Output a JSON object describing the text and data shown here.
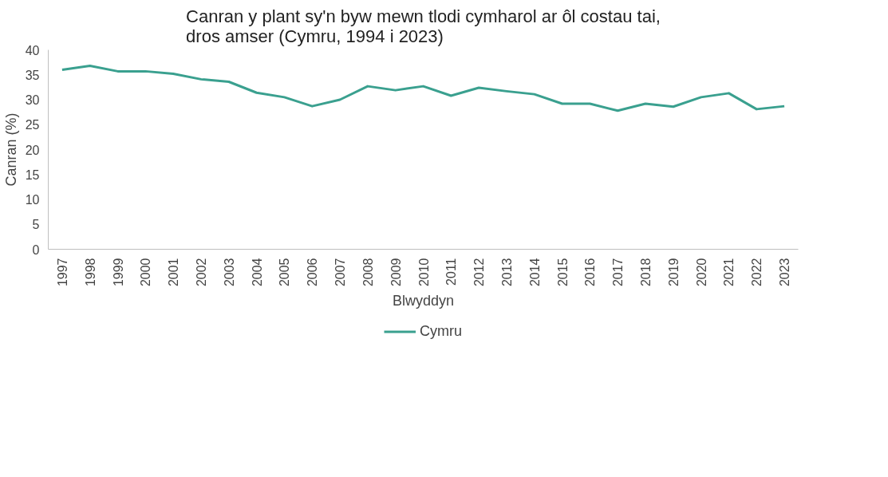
{
  "chart_data": {
    "type": "line",
    "title": "Canran y plant sy'n byw mewn tlodi cymharol ar ôl costau tai,\ndros amser (Cymru, 1994 i 2023)",
    "xlabel": "Blwyddyn",
    "ylabel": "Canran (%)",
    "categories": [
      "1997",
      "1998",
      "1999",
      "2000",
      "2001",
      "2002",
      "2003",
      "2004",
      "2005",
      "2006",
      "2007",
      "2008",
      "2009",
      "2010",
      "2011",
      "2012",
      "2013",
      "2014",
      "2015",
      "2016",
      "2017",
      "2018",
      "2019",
      "2020",
      "2021",
      "2022",
      "2023"
    ],
    "series": [
      {
        "name": "Cymru",
        "color": "#3aa08f",
        "values": [
          36.0,
          36.8,
          35.7,
          35.7,
          35.2,
          34.1,
          33.6,
          31.4,
          30.5,
          28.7,
          30.0,
          32.7,
          31.9,
          32.7,
          30.8,
          32.4,
          31.7,
          31.1,
          29.2,
          29.2,
          27.8,
          29.2,
          28.6,
          30.5,
          31.3,
          28.1,
          28.7
        ]
      }
    ],
    "ylim": [
      0,
      40
    ],
    "yticks": [
      0,
      5,
      10,
      15,
      20,
      25,
      30,
      35,
      40
    ],
    "grid": false,
    "legend": "bottom",
    "marker": "none",
    "line_style": "solid"
  }
}
